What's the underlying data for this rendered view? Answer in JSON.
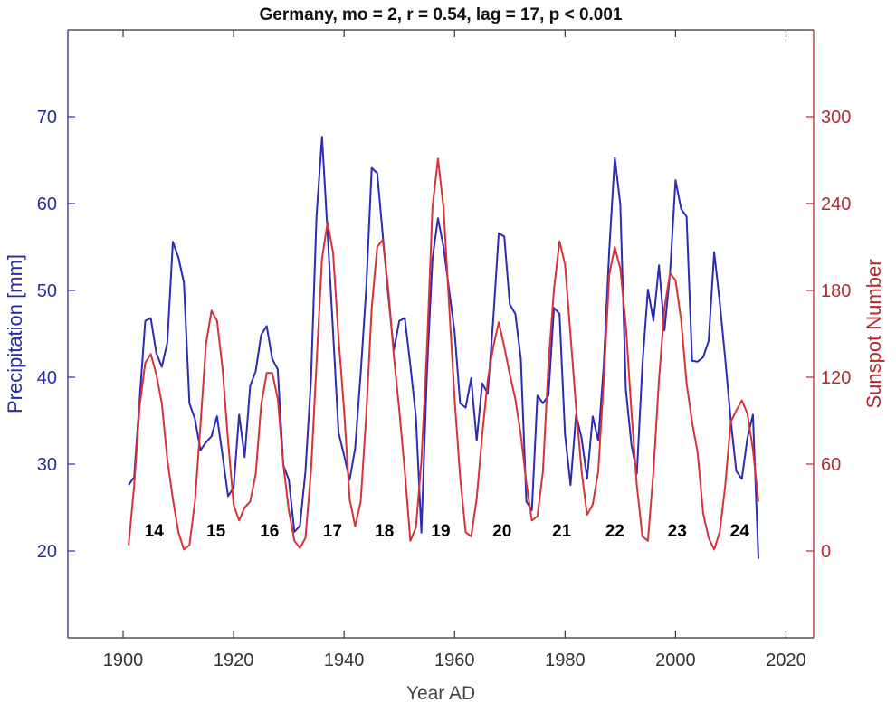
{
  "chart_data": {
    "type": "line",
    "title": "Germany, mo = 2, r = 0.54, lag = 17, p < 0.001",
    "xlabel": "Year AD",
    "ylabel_left": "Precipitation [mm]",
    "ylabel_right": "Sunspot Number",
    "xlim": [
      1890,
      2025
    ],
    "ylim_left": [
      10,
      80
    ],
    "ylim_right": [
      -60,
      360
    ],
    "x_ticks": [
      1900,
      1920,
      1940,
      1960,
      1980,
      2000,
      2020
    ],
    "y_left_ticks": [
      20,
      30,
      40,
      50,
      60,
      70
    ],
    "y_right_ticks": [
      0,
      60,
      120,
      180,
      240,
      300
    ],
    "grid": false,
    "x_start": 1901,
    "series": [
      {
        "axis": "left",
        "color": "#2b2bb3",
        "values": [
          27.6,
          28.5,
          37.5,
          46.5,
          46.8,
          42.8,
          41.2,
          44.0,
          55.6,
          53.8,
          50.9,
          37.0,
          35.2,
          31.6,
          32.5,
          33.2,
          35.5,
          31.0,
          26.3,
          27.3,
          35.7,
          30.8,
          39.0,
          40.7,
          44.9,
          45.9,
          42.1,
          40.9,
          29.9,
          28.2,
          22.2,
          22.9,
          29.2,
          39.7,
          58.5,
          67.7,
          56.7,
          45.2,
          33.6,
          31.0,
          28.2,
          31.8,
          40.4,
          50.1,
          64.1,
          63.5,
          56.4,
          49.4,
          43.1,
          46.5,
          46.8,
          41.4,
          35.5,
          22.1,
          40.4,
          53.6,
          58.3,
          55.0,
          50.1,
          45.2,
          37.0,
          36.5,
          39.9,
          32.7,
          39.3,
          38.1,
          46.7,
          56.6,
          56.2,
          48.4,
          47.3,
          42.1,
          25.7,
          24.7,
          37.9,
          37.0,
          37.9,
          48.0,
          47.3,
          33.4,
          27.6,
          35.7,
          33.0,
          28.3,
          35.5,
          32.7,
          41.4,
          54.7,
          65.3,
          59.9,
          38.6,
          32.3,
          28.9,
          41.4,
          50.1,
          46.5,
          52.9,
          45.4,
          52.0,
          62.7,
          59.4,
          58.5,
          41.9,
          41.8,
          42.3,
          44.2,
          54.4,
          48.7,
          42.1,
          35.1,
          29.2,
          28.3,
          33.0,
          35.7,
          19.1
        ]
      },
      {
        "axis": "right",
        "color": "#d7323a",
        "values": [
          4,
          45,
          100,
          130,
          136,
          122,
          102,
          63,
          36,
          13,
          1,
          4,
          34,
          87,
          143,
          166,
          159,
          126,
          76,
          32,
          21,
          30,
          34,
          53,
          101,
          123,
          123,
          105,
          60,
          28,
          7,
          2,
          9,
          55,
          129,
          202,
          227,
          206,
          147,
          97,
          36,
          17,
          34,
          93,
          168,
          210,
          215,
          181,
          135,
          97,
          55,
          7,
          16,
          62,
          139,
          237,
          271,
          237,
          170,
          105,
          51,
          13,
          10,
          36,
          80,
          118,
          141,
          158,
          141,
          122,
          105,
          80,
          47,
          21,
          24,
          55,
          129,
          181,
          214,
          198,
          149,
          99,
          55,
          25,
          32,
          55,
          118,
          191,
          210,
          195,
          156,
          97,
          45,
          10,
          7,
          55,
          118,
          168,
          192,
          187,
          160,
          116,
          89,
          68,
          26,
          9,
          1,
          13,
          45,
          89,
          97,
          104,
          95,
          70,
          34
        ]
      }
    ],
    "annotations": [
      {
        "text": "14",
        "x": 1905.6,
        "y_left": 22.4
      },
      {
        "text": "15",
        "x": 1916.8,
        "y_left": 22.4
      },
      {
        "text": "16",
        "x": 1926.5,
        "y_left": 22.4
      },
      {
        "text": "17",
        "x": 1937.9,
        "y_left": 22.4
      },
      {
        "text": "18",
        "x": 1947.3,
        "y_left": 22.4
      },
      {
        "text": "19",
        "x": 1957.5,
        "y_left": 22.4
      },
      {
        "text": "20",
        "x": 1968.6,
        "y_left": 22.4
      },
      {
        "text": "21",
        "x": 1979.4,
        "y_left": 22.4
      },
      {
        "text": "22",
        "x": 1989.0,
        "y_left": 22.4
      },
      {
        "text": "23",
        "x": 2000.3,
        "y_left": 22.4
      },
      {
        "text": "24",
        "x": 2011.6,
        "y_left": 22.4
      }
    ],
    "colors": {
      "left_axis": "#2a2aa0",
      "right_axis": "#b52a2e",
      "frame": "#333333"
    }
  }
}
